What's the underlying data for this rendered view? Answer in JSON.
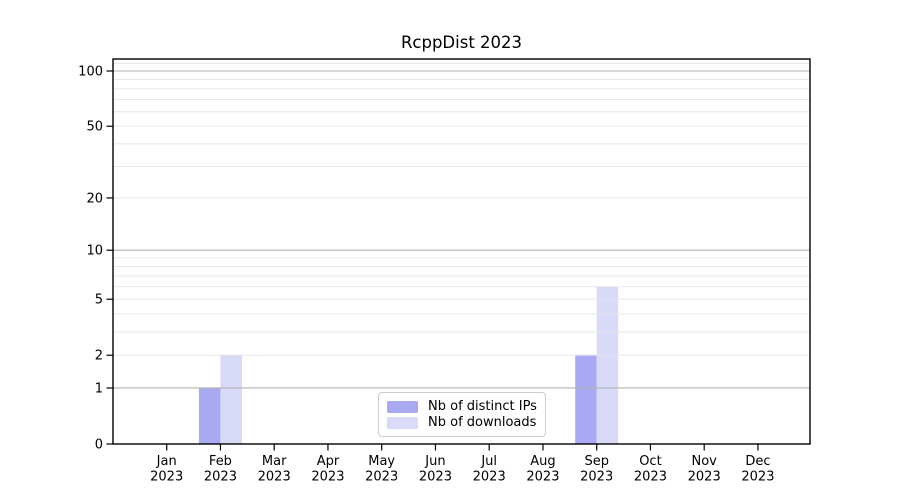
{
  "figure": {
    "background": "#ffffff"
  },
  "chart_data": {
    "type": "bar",
    "title": "RcppDist 2023",
    "categories": [
      "Jan",
      "Feb",
      "Mar",
      "Apr",
      "May",
      "Jun",
      "Jul",
      "Aug",
      "Sep",
      "Oct",
      "Nov",
      "Dec"
    ],
    "x_year_label": "2023",
    "series": [
      {
        "name": "Nb of distinct IPs",
        "color": "#a9a9f3",
        "values": [
          0,
          1,
          0,
          0,
          0,
          0,
          0,
          0,
          2,
          0,
          0,
          0
        ]
      },
      {
        "name": "Nb of downloads",
        "color": "#d9d9f8",
        "values": [
          0,
          2,
          0,
          0,
          0,
          0,
          0,
          0,
          6,
          0,
          0,
          0
        ]
      }
    ],
    "yscale": "log1p",
    "ylim": [
      0,
      116
    ],
    "yticks": [
      0,
      1,
      2,
      5,
      10,
      20,
      50,
      100
    ],
    "grid": {
      "on": true,
      "major_values": [
        1,
        10,
        100
      ],
      "major_color": "#b2b2b2",
      "minor_values": [
        2,
        3,
        4,
        5,
        6,
        7,
        8,
        9,
        20,
        30,
        40,
        50,
        60,
        70,
        80,
        90,
        110
      ],
      "minor_color": "#e5e5e5"
    },
    "axis_color": "#000000",
    "tick_label_color": "#000000",
    "legend_position": "lower center"
  }
}
